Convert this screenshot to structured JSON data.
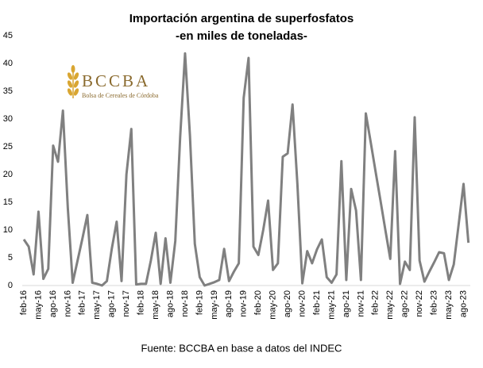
{
  "chart_data": {
    "type": "line",
    "title": "Importación argentina de superfosfatos",
    "subtitle": "-en miles de toneladas-",
    "source": "Fuente: BCCBA en base a datos del INDEC",
    "logo": {
      "title": "BCCBA",
      "subtitle": "Bolsa de Cereales de Córdoba"
    },
    "color": "#808080",
    "ylim": [
      0,
      45
    ],
    "yticks": [
      0,
      5,
      10,
      15,
      20,
      25,
      30,
      35,
      40,
      45
    ],
    "categories": [
      "feb-16",
      null,
      null,
      "may-16",
      null,
      null,
      "ago-16",
      null,
      null,
      "nov-16",
      null,
      null,
      "feb-17",
      null,
      null,
      "may-17",
      null,
      null,
      "ago-17",
      null,
      null,
      "nov-17",
      null,
      null,
      "feb-18",
      null,
      null,
      "may-18",
      null,
      null,
      "ago-18",
      null,
      null,
      "nov-18",
      null,
      null,
      "feb-19",
      null,
      null,
      "may-19",
      null,
      null,
      "ago-19",
      null,
      null,
      "nov-19",
      null,
      null,
      "feb-20",
      null,
      null,
      "may-20",
      null,
      null,
      "ago-20",
      null,
      null,
      "nov-20",
      null,
      null,
      "feb-21",
      null,
      null,
      "may-21",
      null,
      null,
      "ago-21",
      null,
      null,
      "nov-21",
      null,
      null,
      "feb-22",
      null,
      null,
      "may-22",
      null,
      null,
      "ago-22",
      null,
      null,
      "nov-22",
      null,
      null,
      "feb-23",
      null,
      null,
      "may-23",
      null,
      null,
      "ago-23",
      null
    ],
    "values": [
      8.3,
      7,
      2,
      13.3,
      1.2,
      3,
      25.2,
      22.3,
      31.5,
      14,
      0.5,
      4.5,
      8.5,
      12.7,
      0.5,
      0.3,
      0,
      0.8,
      6.6,
      11.5,
      0.8,
      20,
      28.2,
      0.2,
      0.3,
      0.3,
      4.5,
      9.5,
      0.3,
      8.5,
      0.5,
      8,
      26.8,
      41.8,
      27,
      7.5,
      1.5,
      0,
      0.3,
      0.6,
      1,
      6.6,
      0.8,
      2.5,
      4,
      33.8,
      41,
      7,
      5.5,
      10,
      15.3,
      2.8,
      4,
      23.2,
      23.8,
      32.6,
      18.2,
      0.4,
      6.2,
      4,
      6.5,
      8.3,
      1.5,
      0.5,
      2,
      22.4,
      1,
      17.4,
      13.5,
      1,
      31,
      25.8,
      20.5,
      15.3,
      10,
      4.8,
      24.2,
      0.3,
      4.3,
      2.8,
      30.3,
      4.5,
      0.7,
      2.5,
      4.2,
      6,
      5.8,
      1,
      3.8,
      11,
      18.3,
      7.7
    ]
  }
}
